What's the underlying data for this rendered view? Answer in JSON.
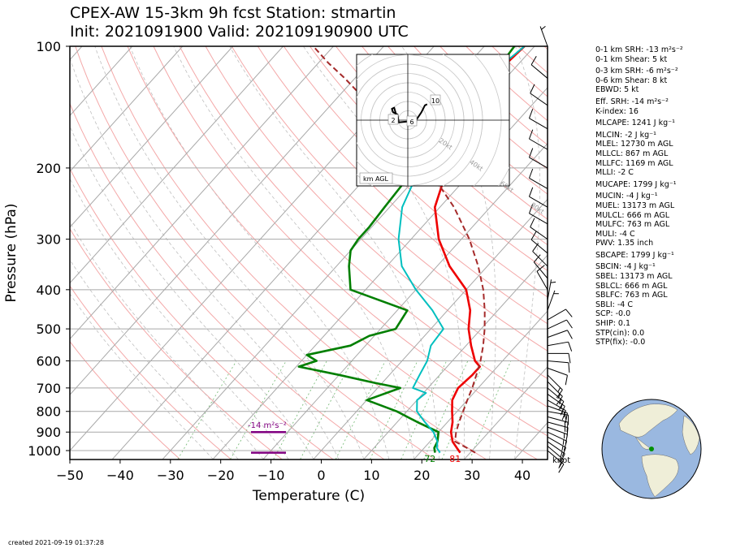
{
  "title_line1": "CPEX-AW 15-3km  9h fcst  Station: stmartin",
  "title_line2": "Init: 2021091900  Valid: 202109190900 UTC",
  "footer": "created 2021-09-19 01:37:28",
  "colors": {
    "temperature": "#ee0000",
    "dewpoint": "#007f00",
    "wetbulb": "#00bfbf",
    "parcel": "#a52a2a",
    "srh": "#800080",
    "dry_adiabat": "#f4a8a8",
    "moist_adiabat": "#bfbfbf",
    "mixing_ratio": "#7fbf7f"
  },
  "params": [
    "0-1 km SRH: -13 m²s⁻²",
    "0-1 km Shear: 5 kt",
    "0-3 km SRH: -6 m²s⁻²",
    "0-6 km Shear: 8 kt",
    "EBWD: 5 kt",
    "Eff. SRH: -14 m²s⁻²",
    "K-index: 16",
    "MLCAPE: 1241 J kg⁻¹",
    "MLCIN: -2 J kg⁻¹",
    "MLEL: 12730 m AGL",
    "MLLCL: 867 m AGL",
    "MLLFC: 1169 m AGL",
    "MLLI: -2 C",
    "MUCAPE: 1799 J kg⁻¹",
    "MUCIN: -4 J kg⁻¹",
    "MUEL: 13173 m AGL",
    "MULCL: 666 m AGL",
    "MULFC: 763 m AGL",
    "MULI: -4 C",
    "PWV: 1.35 inch",
    "SBCAPE: 1799 J kg⁻¹",
    "SBCIN: -4 J kg⁻¹",
    "SBEL: 13173 m AGL",
    "SBLCL: 666 m AGL",
    "SBLFC: 763 m AGL",
    "SBLI: -4 C",
    "SCP: -0.0",
    "SHIP: 0.1",
    "STP(cin): 0.0",
    "STP(fix): -0.0"
  ],
  "chart_data": [
    {
      "type": "line",
      "subtype": "skew-T log-p sounding",
      "xlabel": "Temperature (C)",
      "ylabel": "Pressure (hPa)",
      "xlim": [
        -50,
        45
      ],
      "ylim": [
        1050,
        100
      ],
      "y_scale": "log",
      "xticks": [
        -50,
        -40,
        -30,
        -20,
        -10,
        0,
        10,
        20,
        30,
        40
      ],
      "yticks": [
        1000,
        900,
        800,
        700,
        600,
        500,
        400,
        300,
        200,
        100
      ],
      "series": [
        {
          "key": "temperature",
          "points": [
            [
              28,
              1012
            ],
            [
              26.5,
              985
            ],
            [
              24.5,
              950
            ],
            [
              22.5,
              900
            ],
            [
              21,
              850
            ],
            [
              19,
              800
            ],
            [
              17,
              750
            ],
            [
              16,
              700
            ],
            [
              16.5,
              650
            ],
            [
              16.5,
              620
            ],
            [
              14.5,
              600
            ],
            [
              11,
              550
            ],
            [
              7.5,
              500
            ],
            [
              4.5,
              450
            ],
            [
              0,
              400
            ],
            [
              -7.5,
              350
            ],
            [
              -14.5,
              300
            ],
            [
              -21,
              250
            ],
            [
              -25.5,
              200
            ],
            [
              -27.5,
              180
            ],
            [
              -29.5,
              160
            ],
            [
              -31,
              140
            ],
            [
              -32,
              120
            ],
            [
              -32.5,
              110
            ],
            [
              -32,
              100
            ]
          ]
        },
        {
          "key": "dewpoint",
          "points": [
            [
              23,
              1012
            ],
            [
              22,
              985
            ],
            [
              21.5,
              950
            ],
            [
              20,
              900
            ],
            [
              14,
              850
            ],
            [
              8,
              800
            ],
            [
              0,
              750
            ],
            [
              4.5,
              700
            ],
            [
              -1.5,
              680
            ],
            [
              -10,
              650
            ],
            [
              -19.5,
              620
            ],
            [
              -17,
              600
            ],
            [
              -20,
              580
            ],
            [
              -13,
              550
            ],
            [
              -11,
              520
            ],
            [
              -7,
              500
            ],
            [
              -8,
              450
            ],
            [
              -23,
              400
            ],
            [
              -27.5,
              350
            ],
            [
              -30,
              320
            ],
            [
              -30.5,
              300
            ],
            [
              -30.5,
              280
            ],
            [
              -31,
              250
            ],
            [
              -31.5,
              220
            ],
            [
              -31,
              200
            ],
            [
              -31.5,
              180
            ],
            [
              -32,
              160
            ],
            [
              -32.5,
              140
            ],
            [
              -33,
              120
            ],
            [
              -34,
              100
            ]
          ]
        },
        {
          "key": "wetbulb",
          "points": [
            [
              24,
              1012
            ],
            [
              22.5,
              985
            ],
            [
              21.5,
              950
            ],
            [
              19,
              900
            ],
            [
              15.5,
              850
            ],
            [
              12,
              800
            ],
            [
              10,
              750
            ],
            [
              10.5,
              720
            ],
            [
              7,
              700
            ],
            [
              6,
              650
            ],
            [
              5,
              600
            ],
            [
              3,
              550
            ],
            [
              2.5,
              500
            ],
            [
              -3,
              450
            ],
            [
              -10,
              400
            ],
            [
              -17,
              350
            ],
            [
              -22.5,
              300
            ],
            [
              -27.5,
              250
            ],
            [
              -29.5,
              220
            ],
            [
              -30.5,
              200
            ],
            [
              -31.5,
              180
            ],
            [
              -32.5,
              160
            ],
            [
              -33.5,
              140
            ],
            [
              -33.5,
              120
            ],
            [
              -33,
              110
            ],
            [
              -32,
              100
            ]
          ]
        },
        {
          "key": "parcel",
          "points": [
            [
              31,
              1012
            ],
            [
              28.5,
              985
            ],
            [
              25,
              950
            ],
            [
              23.5,
              900
            ],
            [
              22.3,
              850
            ],
            [
              21.2,
              800
            ],
            [
              20,
              750
            ],
            [
              18.8,
              700
            ],
            [
              17.3,
              650
            ],
            [
              15.6,
              600
            ],
            [
              13.4,
              550
            ],
            [
              10.7,
              500
            ],
            [
              7.4,
              450
            ],
            [
              3.4,
              400
            ],
            [
              -1.8,
              350
            ],
            [
              -8.4,
              300
            ],
            [
              -17.2,
              250
            ],
            [
              -29.5,
              200
            ],
            [
              -36,
              180
            ],
            [
              -43.5,
              160
            ],
            [
              -52,
              140
            ],
            [
              -62,
              120
            ],
            [
              -68,
              110
            ],
            [
              -74,
              100
            ]
          ]
        }
      ],
      "surface_labels": [
        {
          "text": "72",
          "key": "dewpoint",
          "temperature": 22
        },
        {
          "text": "81",
          "key": "temperature",
          "temperature": 27
        }
      ],
      "srh_bars": [
        {
          "label": "-14 m²s⁻²",
          "pressure": 900
        },
        {
          "label": "",
          "pressure": 1012
        }
      ],
      "wind_barb_units": "knot",
      "wind_barbs": [
        {
          "p": 1000,
          "spd": 15,
          "dir": 130
        },
        {
          "p": 975,
          "spd": 15,
          "dir": 130
        },
        {
          "p": 950,
          "spd": 15,
          "dir": 125
        },
        {
          "p": 925,
          "spd": 15,
          "dir": 120
        },
        {
          "p": 900,
          "spd": 15,
          "dir": 115
        },
        {
          "p": 875,
          "spd": 15,
          "dir": 110
        },
        {
          "p": 850,
          "spd": 15,
          "dir": 105
        },
        {
          "p": 825,
          "spd": 15,
          "dir": 105
        },
        {
          "p": 800,
          "spd": 15,
          "dir": 100
        },
        {
          "p": 775,
          "spd": 15,
          "dir": 110
        },
        {
          "p": 750,
          "spd": 15,
          "dir": 120
        },
        {
          "p": 725,
          "spd": 15,
          "dir": 125
        },
        {
          "p": 700,
          "spd": 15,
          "dir": 130
        },
        {
          "p": 675,
          "spd": 15,
          "dir": 135
        },
        {
          "p": 650,
          "spd": 15,
          "dir": 135
        },
        {
          "p": 625,
          "spd": 10,
          "dir": 110
        },
        {
          "p": 600,
          "spd": 10,
          "dir": 95
        },
        {
          "p": 575,
          "spd": 10,
          "dir": 90
        },
        {
          "p": 550,
          "spd": 10,
          "dir": 80
        },
        {
          "p": 525,
          "spd": 10,
          "dir": 70
        },
        {
          "p": 500,
          "spd": 10,
          "dir": 65
        },
        {
          "p": 475,
          "spd": 10,
          "dir": 60
        },
        {
          "p": 450,
          "spd": 5,
          "dir": 20
        },
        {
          "p": 425,
          "spd": 5,
          "dir": 10
        },
        {
          "p": 400,
          "spd": 10,
          "dir": 330
        },
        {
          "p": 375,
          "spd": 10,
          "dir": 320
        },
        {
          "p": 350,
          "spd": 10,
          "dir": 315
        },
        {
          "p": 325,
          "spd": 10,
          "dir": 310
        },
        {
          "p": 300,
          "spd": 10,
          "dir": 305
        },
        {
          "p": 275,
          "spd": 10,
          "dir": 300
        },
        {
          "p": 250,
          "spd": 10,
          "dir": 300
        },
        {
          "p": 225,
          "spd": 10,
          "dir": 300
        },
        {
          "p": 200,
          "spd": 10,
          "dir": 300
        },
        {
          "p": 180,
          "spd": 10,
          "dir": 300
        },
        {
          "p": 160,
          "spd": 10,
          "dir": 300
        },
        {
          "p": 140,
          "spd": 10,
          "dir": 305
        },
        {
          "p": 120,
          "spd": 10,
          "dir": 310
        },
        {
          "p": 100,
          "spd": 5,
          "dir": 340
        }
      ]
    },
    {
      "type": "line",
      "subtype": "hodograph",
      "ring_labels": [
        "20kt",
        "40kt",
        "60kt",
        "80kt"
      ],
      "box_label": "km AGL",
      "height_labels": [
        "2",
        "6",
        "10"
      ],
      "trace_uv": [
        [
          -8,
          -2
        ],
        [
          -9,
          5
        ],
        [
          -13,
          7
        ],
        [
          -14,
          10
        ],
        [
          -12,
          11
        ],
        [
          -10,
          4
        ],
        [
          -8,
          -2
        ],
        [
          2,
          -1
        ],
        [
          3,
          0
        ],
        [
          8,
          1
        ],
        [
          12,
          7
        ],
        [
          15,
          13
        ],
        [
          17,
          14
        ]
      ]
    },
    {
      "type": "map",
      "subtype": "orthographic globe inset",
      "station_marker_lonlat": [
        -63,
        18
      ]
    }
  ]
}
